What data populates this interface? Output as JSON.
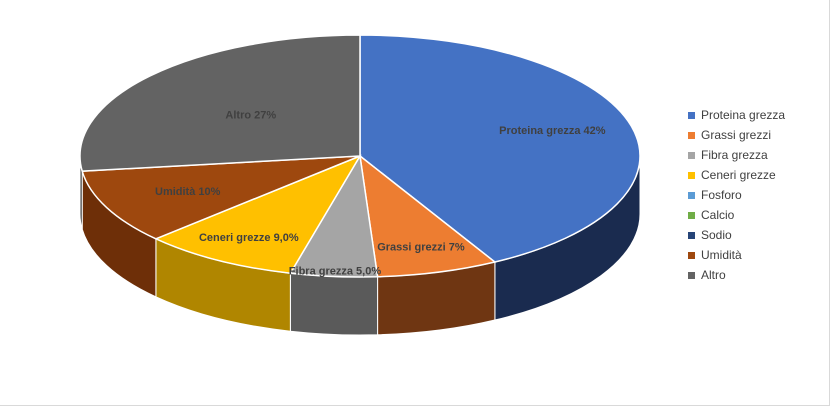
{
  "chart_data": {
    "type": "pie",
    "title": "",
    "legend_position": "right",
    "categories": [
      "Proteina grezza",
      "Grassi grezzi",
      "Fibra grezza",
      "Ceneri grezze",
      "Fosforo",
      "Calcio",
      "Sodio",
      "Umidità",
      "Altro"
    ],
    "values": [
      42,
      7,
      5.0,
      9.0,
      0,
      0,
      0,
      10,
      27
    ],
    "data_labels": [
      "Proteina grezza 42%",
      "Grassi grezzi 7%",
      "Fibra grezza 5,0%",
      "Ceneri grezze 9,0%",
      "",
      "",
      "",
      "Umidità 10%",
      "Altro 27%"
    ],
    "colors": [
      "#4472C4",
      "#ED7D31",
      "#A5A5A5",
      "#FFC000",
      "#5B9BD5",
      "#70AD47",
      "#264478",
      "#9E480E",
      "#636363"
    ],
    "side_colors": [
      "#1A2B4F",
      "#6F3612",
      "#5A5A5A",
      "#B08600",
      "#5B9BD5",
      "#70AD47",
      "#264478",
      "#6E2F08",
      "#3A3A3A"
    ]
  }
}
